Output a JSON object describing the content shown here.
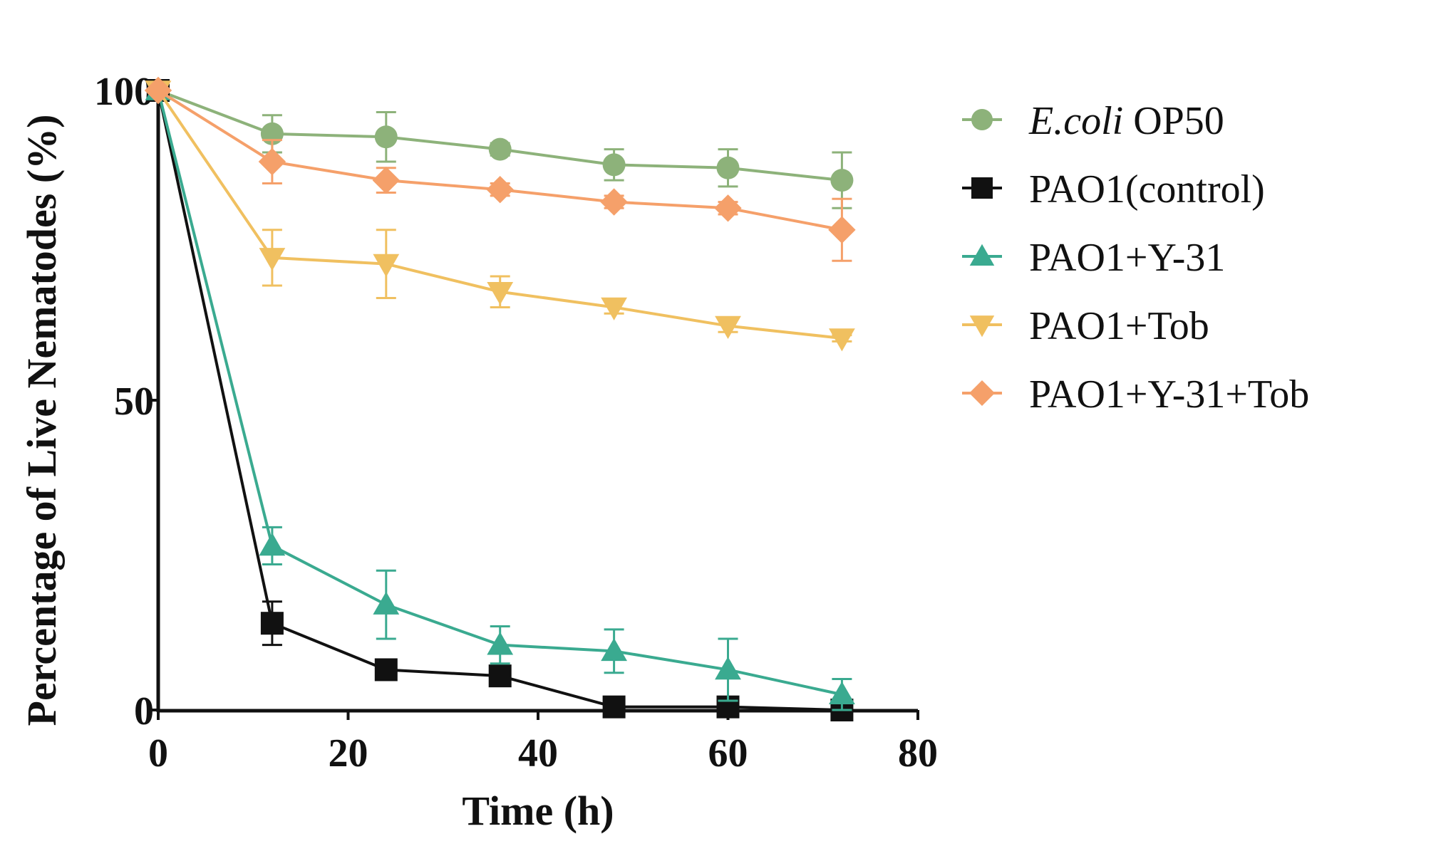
{
  "chart_data": {
    "type": "line",
    "title": "",
    "xlabel": "Time (h)",
    "ylabel": "Percentage of Live Nematodes (%)",
    "xlim": [
      0,
      80
    ],
    "ylim": [
      0,
      100
    ],
    "xticks": [
      0,
      20,
      40,
      60,
      80
    ],
    "yticks": [
      0,
      50,
      100
    ],
    "x": [
      0,
      12,
      24,
      36,
      48,
      60,
      72
    ],
    "grid": false,
    "legend_position": "right",
    "series": [
      {
        "name": "E.coli OP50",
        "name_parts": [
          {
            "text": "E.coli",
            "italic": true
          },
          {
            "text": " OP50",
            "italic": false
          }
        ],
        "color": "#8db27a",
        "marker": "circle",
        "values": [
          100,
          93,
          92.5,
          90.5,
          88,
          87.5,
          85.5
        ],
        "errors": [
          0,
          3,
          4,
          1,
          2.5,
          3,
          4.5
        ]
      },
      {
        "name": "PAO1(control)",
        "name_parts": [
          {
            "text": "PAO1(control)",
            "italic": false
          }
        ],
        "color": "#111111",
        "marker": "square",
        "values": [
          100,
          14,
          6.5,
          5.5,
          0.5,
          0.5,
          0
        ],
        "errors": [
          0,
          3.5,
          1,
          1,
          0.5,
          0.5,
          0
        ]
      },
      {
        "name": "PAO1+Y-31",
        "name_parts": [
          {
            "text": "PAO1+Y-31",
            "italic": false
          }
        ],
        "color": "#3aaa90",
        "marker": "triangle-up",
        "values": [
          100,
          26.5,
          17,
          10.5,
          9.5,
          6.5,
          2.5
        ],
        "errors": [
          0,
          3,
          5.5,
          3,
          3.5,
          5,
          2.5
        ]
      },
      {
        "name": "PAO1+Tob",
        "name_parts": [
          {
            "text": "PAO1+Tob",
            "italic": false
          }
        ],
        "color": "#f0c060",
        "marker": "triangle-down",
        "values": [
          100,
          73,
          72,
          67.5,
          65,
          62,
          60
        ],
        "errors": [
          0,
          4.5,
          5.5,
          2.5,
          1,
          1,
          0.5
        ]
      },
      {
        "name": "PAO1+Y-31+Tob",
        "name_parts": [
          {
            "text": "PAO1+Y-31+Tob",
            "italic": false
          }
        ],
        "color": "#f5a06a",
        "marker": "diamond",
        "values": [
          100,
          88.5,
          85.5,
          84,
          82,
          81,
          77.5
        ],
        "errors": [
          0,
          3.5,
          2,
          1,
          1,
          1,
          5
        ]
      }
    ]
  }
}
